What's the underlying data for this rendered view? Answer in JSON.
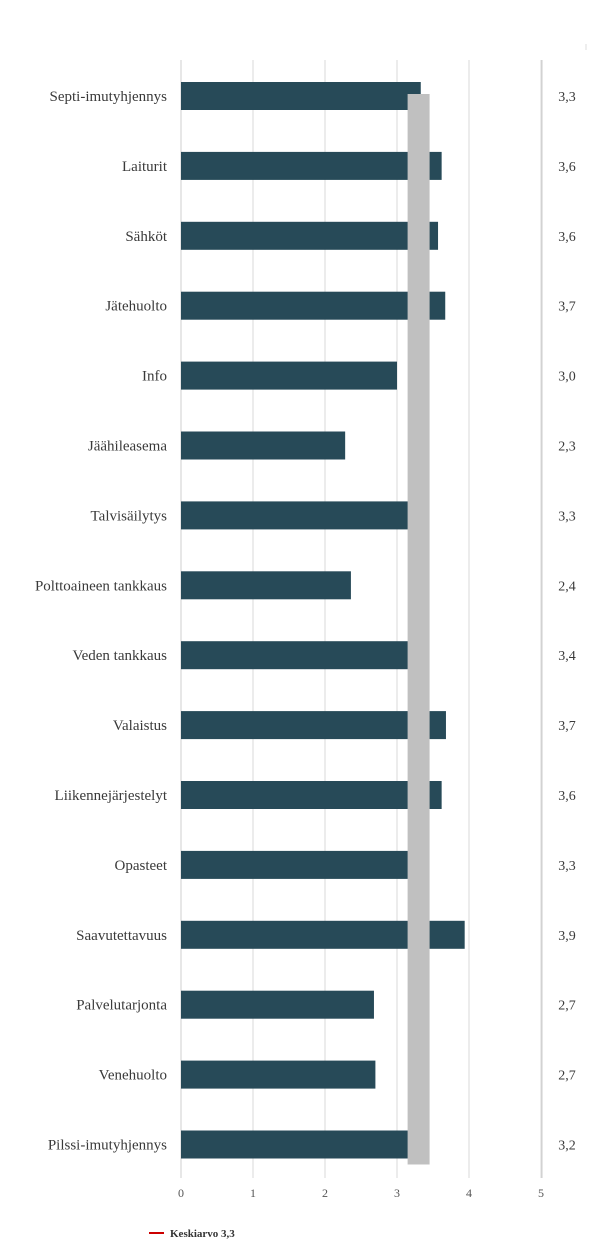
{
  "chart_data": {
    "type": "bar",
    "orientation": "horizontal",
    "categories": [
      "Septi-imutyhjennys",
      "Laiturit",
      "Sähköt",
      "Jätehuolto",
      "Info",
      "Jäähileasema",
      "Talvisäilytys",
      "Polttoaineen tankkaus",
      "Veden tankkaus",
      "Valaistus",
      "Liikennejärjestelyt",
      "Opasteet",
      "Saavutettavuus",
      "Palvelutarjonta",
      "Venehuolto",
      "Pilssi-imutyhjennys"
    ],
    "values": [
      3.33,
      3.62,
      3.57,
      3.67,
      3.0,
      2.28,
      3.3,
      2.36,
      3.4,
      3.68,
      3.62,
      3.3,
      3.94,
      2.68,
      2.7,
      3.2
    ],
    "value_labels": [
      "3,3",
      "3,6",
      "3,6",
      "3,7",
      "3,0",
      "2,3",
      "3,3",
      "2,4",
      "3,4",
      "3,7",
      "3,6",
      "3,3",
      "3,9",
      "2,7",
      "2,7",
      "3,2"
    ],
    "xlim": [
      0,
      5
    ],
    "x_ticks": [
      "0",
      "1",
      "2",
      "3",
      "4",
      "5"
    ],
    "reference_line": {
      "label": "Keskiarvo 3,3",
      "value": 3.3,
      "color": "#c0c0c0",
      "legend_color": "#cc0000"
    },
    "bar_color": "#274a58",
    "grid": true,
    "legend_position": "bottom-left"
  }
}
